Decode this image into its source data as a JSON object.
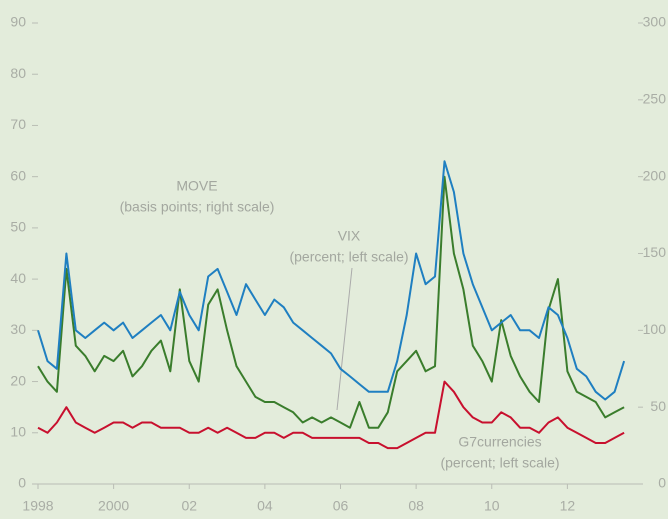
{
  "chart_data": {
    "type": "line",
    "x": [
      1998,
      1998.25,
      1998.5,
      1998.75,
      1999,
      1999.25,
      1999.5,
      1999.75,
      2000,
      2000.25,
      2000.5,
      2000.75,
      2001,
      2001.25,
      2001.5,
      2001.75,
      2002,
      2002.25,
      2002.5,
      2002.75,
      2003,
      2003.25,
      2003.5,
      2003.75,
      2004,
      2004.25,
      2004.5,
      2004.75,
      2005,
      2005.25,
      2005.5,
      2005.75,
      2006,
      2006.25,
      2006.5,
      2006.75,
      2007,
      2007.25,
      2007.5,
      2007.75,
      2008,
      2008.25,
      2008.5,
      2008.75,
      2009,
      2009.25,
      2009.5,
      2009.75,
      2010,
      2010.25,
      2010.5,
      2010.75,
      2011,
      2011.25,
      2011.5,
      2011.75,
      2012,
      2012.25,
      2012.5,
      2012.75,
      2013,
      2013.25,
      2013.5
    ],
    "series": [
      {
        "name": "MOVE",
        "color": "#1f7fc1",
        "axis": "y2",
        "values": [
          100,
          80,
          75,
          150,
          100,
          95,
          100,
          105,
          100,
          105,
          95,
          100,
          105,
          110,
          100,
          125,
          110,
          100,
          135,
          140,
          125,
          110,
          130,
          120,
          110,
          120,
          115,
          105,
          100,
          95,
          90,
          85,
          75,
          70,
          65,
          60,
          60,
          60,
          80,
          110,
          150,
          130,
          135,
          210,
          190,
          150,
          130,
          115,
          100,
          105,
          110,
          100,
          100,
          95,
          115,
          110,
          95,
          75,
          70,
          60,
          55,
          60,
          80
        ]
      },
      {
        "name": "VIX",
        "color": "#3a7d2c",
        "values": [
          23,
          20,
          18,
          42,
          27,
          25,
          22,
          25,
          24,
          26,
          21,
          23,
          26,
          28,
          22,
          38,
          24,
          20,
          35,
          38,
          30,
          23,
          20,
          17,
          16,
          16,
          15,
          14,
          12,
          13,
          12,
          13,
          12,
          11,
          16,
          11,
          11,
          14,
          22,
          24,
          26,
          22,
          23,
          60,
          45,
          38,
          27,
          24,
          20,
          32,
          25,
          21,
          18,
          16,
          34,
          40,
          22,
          18,
          17,
          16,
          13,
          14,
          15
        ]
      },
      {
        "name": "G7currencies",
        "color": "#c8102e",
        "values": [
          11,
          10,
          12,
          15,
          12,
          11,
          10,
          11,
          12,
          12,
          11,
          12,
          12,
          11,
          11,
          11,
          10,
          10,
          11,
          10,
          11,
          10,
          9,
          9,
          10,
          10,
          9,
          10,
          10,
          9,
          9,
          9,
          9,
          9,
          9,
          8,
          8,
          7,
          7,
          8,
          9,
          10,
          10,
          20,
          18,
          15,
          13,
          12,
          12,
          14,
          13,
          11,
          11,
          10,
          12,
          13,
          11,
          10,
          9,
          8,
          8,
          9,
          10
        ]
      }
    ],
    "annotations": [
      "MOVE",
      "(basis points; right scale)",
      "VIX",
      "(percent; left scale)",
      "G7currencies",
      "(percent; left scale)"
    ],
    "xlim": [
      1998,
      2014
    ],
    "xticks": [
      1998,
      2000,
      {
        "value": 2002,
        "label": "02"
      },
      {
        "value": 2004,
        "label": "04"
      },
      {
        "value": 2006,
        "label": "06"
      },
      {
        "value": 2008,
        "label": "08"
      },
      {
        "value": 2010,
        "label": "10"
      },
      {
        "value": 2012,
        "label": "12"
      }
    ],
    "ylim": [
      0,
      90
    ],
    "yticks": [
      0,
      10,
      20,
      30,
      40,
      50,
      60,
      70,
      80,
      90
    ],
    "y2lim": [
      0,
      300
    ],
    "y2ticks": [
      0,
      50,
      100,
      150,
      200,
      250,
      300
    ]
  }
}
